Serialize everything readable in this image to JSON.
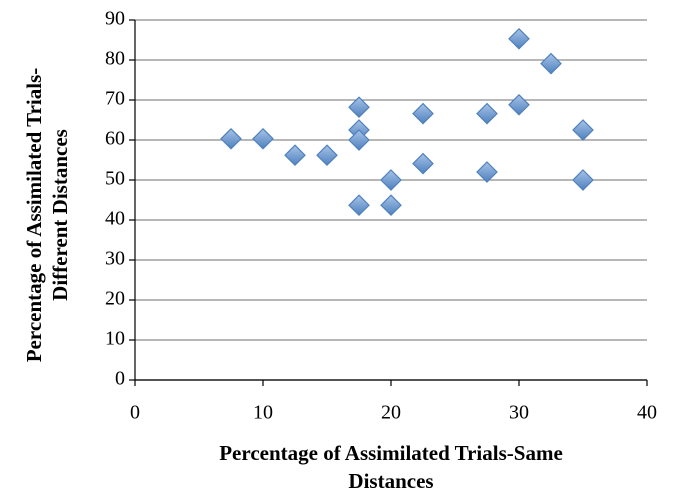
{
  "chart_data": {
    "type": "scatter",
    "x_label": [
      "Percentage of Assimilated Trials-Same",
      "Distances"
    ],
    "y_label": [
      "Percentage of Assimilated Trials-",
      "Different Distances"
    ],
    "x": [
      7.5,
      10,
      12.5,
      15,
      17.5,
      17.5,
      17.5,
      17.5,
      20,
      20,
      22.5,
      22.5,
      27.5,
      27.5,
      30,
      30,
      32.5,
      35,
      35
    ],
    "values": [
      60.3,
      60.3,
      56.2,
      56.2,
      68.2,
      62.5,
      60,
      43.7,
      50,
      43.7,
      66.6,
      54.1,
      66.6,
      52,
      85.3,
      68.8,
      79.1,
      62.5,
      50
    ],
    "color": "#4f81bd",
    "xlim": [
      0,
      40
    ],
    "xticks": [
      0,
      10,
      20,
      30,
      40
    ],
    "ylim": [
      0,
      90
    ],
    "yticks": [
      0,
      10,
      20,
      30,
      40,
      50,
      60,
      70,
      80,
      90
    ],
    "grid": true
  }
}
